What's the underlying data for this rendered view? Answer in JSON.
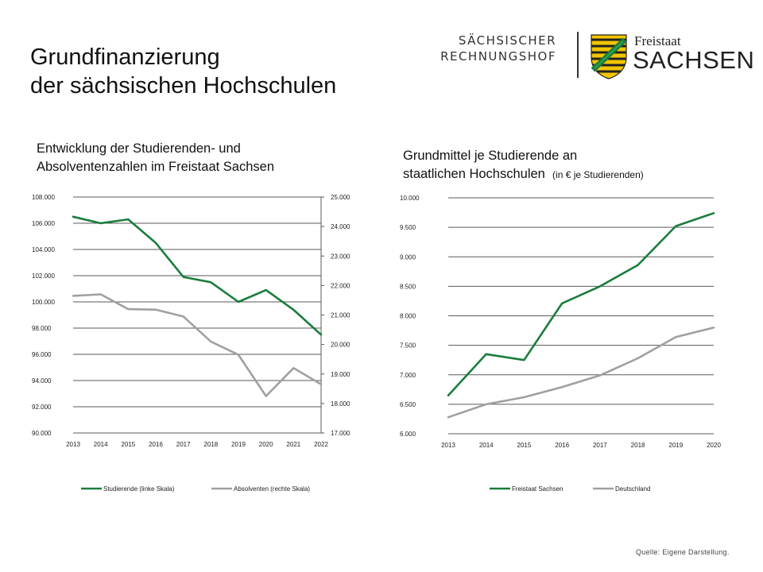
{
  "title": {
    "line1": "Grundfinanzierung",
    "line2": "der sächsischen Hochschulen"
  },
  "logo": {
    "org_line1": "SÄCHSISCHER",
    "org_line2": "RECHNUNGSHOF",
    "state_line1": "Freistaat",
    "state_line2": "SACHSEN",
    "crest_icon": "saxony-coat-of-arms-icon"
  },
  "chart1": {
    "subtitle_line1": "Entwicklung der Studierenden- und",
    "subtitle_line2": "Absolventenzahlen im Freistaat Sachsen"
  },
  "chart2": {
    "subtitle_line1": "Grundmittel je Studierende an",
    "subtitle_line2": "staatlichen Hochschulen",
    "subtitle_note": "(in € je Studierenden)"
  },
  "source": "Quelle: Eigene Darstellung.",
  "colors": {
    "green": "#1a7d3c",
    "gray": "#a0a0a0",
    "grid": "#5a5a5a"
  },
  "chart_data": [
    {
      "type": "line",
      "x": [
        "2013",
        "2014",
        "2015",
        "2016",
        "2017",
        "2018",
        "2019",
        "2020",
        "2021",
        "2022"
      ],
      "left_axis": {
        "ylim": [
          90000,
          108000
        ],
        "ticks": [
          "90.000",
          "92.000",
          "94.000",
          "96.000",
          "98.000",
          "100.000",
          "102.000",
          "104.000",
          "106.000",
          "108.000"
        ]
      },
      "right_axis": {
        "ylim": [
          17000,
          25000
        ],
        "ticks": [
          "17.000",
          "18.000",
          "19.000",
          "20.000",
          "21.000",
          "22.000",
          "23.000",
          "24.000",
          "25.000"
        ]
      },
      "grid": true,
      "legend_position": "bottom",
      "series": [
        {
          "name": "Studierende (linke Skala)",
          "axis": "left",
          "color": "#1a7d3c",
          "values": [
            106500,
            106000,
            106300,
            104500,
            101900,
            101500,
            100000,
            100900,
            99400,
            97500
          ]
        },
        {
          "name": "Absolventen (rechte Skala)",
          "axis": "right",
          "color": "#a0a0a0",
          "values": [
            21650,
            21700,
            21200,
            21180,
            20950,
            20100,
            19650,
            18250,
            19200,
            18650
          ]
        }
      ]
    },
    {
      "type": "line",
      "x": [
        "2013",
        "2014",
        "2015",
        "2016",
        "2017",
        "2018",
        "2019",
        "2020"
      ],
      "left_axis": {
        "ylim": [
          6000,
          10000
        ],
        "ticks": [
          "6.000",
          "6.500",
          "7.000",
          "7.500",
          "8.000",
          "8.500",
          "9.000",
          "9.500",
          "10.000"
        ]
      },
      "grid": true,
      "legend_position": "bottom",
      "series": [
        {
          "name": "Freistaat Sachsen",
          "axis": "left",
          "color": "#1a7d3c",
          "values": [
            6650,
            7350,
            7250,
            8210,
            8500,
            8860,
            9520,
            9740
          ]
        },
        {
          "name": "Deutschland",
          "axis": "left",
          "color": "#a0a0a0",
          "values": [
            6280,
            6500,
            6620,
            6790,
            6990,
            7280,
            7640,
            7800
          ]
        }
      ]
    }
  ]
}
